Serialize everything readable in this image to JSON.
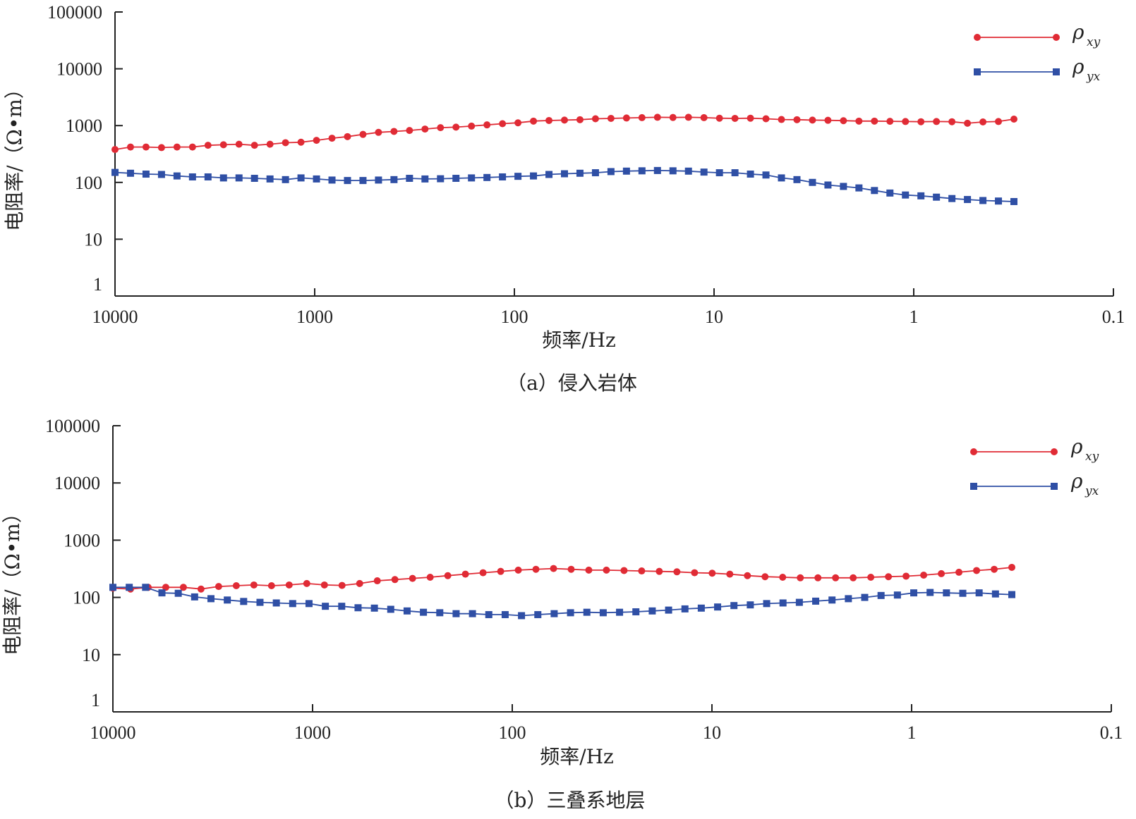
{
  "chart_data": [
    {
      "type": "line",
      "caption": "（a）侵入岩体",
      "xlabel": "频率/Hz",
      "ylabel": "电阻率/（Ω•m）",
      "xscale": "log",
      "yscale": "log",
      "xlim": [
        10000,
        0.1
      ],
      "ylim": [
        1,
        100000
      ],
      "xticks": [
        "10000",
        "1000",
        "100",
        "10",
        "1",
        "0.1"
      ],
      "yticks": [
        "1",
        "10",
        "100",
        "1000",
        "10000",
        "100000"
      ],
      "legend": {
        "placement": "top-right"
      },
      "series": [
        {
          "name": "ρ",
          "name_sub": "xy",
          "color": "#e02b35",
          "marker": "circle",
          "values": [
            380,
            420,
            420,
            410,
            420,
            420,
            450,
            460,
            470,
            450,
            470,
            500,
            510,
            550,
            600,
            640,
            700,
            760,
            790,
            820,
            870,
            920,
            940,
            980,
            1030,
            1080,
            1120,
            1200,
            1230,
            1250,
            1270,
            1320,
            1340,
            1360,
            1380,
            1400,
            1390,
            1400,
            1380,
            1350,
            1340,
            1350,
            1320,
            1280,
            1270,
            1250,
            1240,
            1220,
            1200,
            1200,
            1190,
            1180,
            1170,
            1180,
            1170,
            1100,
            1160,
            1180,
            1300
          ]
        },
        {
          "name": "ρ",
          "name_sub": "yx",
          "color": "#2f4fa5",
          "marker": "square",
          "values": [
            150,
            145,
            140,
            138,
            130,
            125,
            125,
            120,
            120,
            118,
            115,
            112,
            120,
            115,
            110,
            108,
            108,
            110,
            112,
            118,
            115,
            116,
            118,
            120,
            122,
            125,
            128,
            130,
            138,
            142,
            145,
            148,
            155,
            158,
            160,
            162,
            160,
            158,
            152,
            148,
            148,
            140,
            135,
            120,
            112,
            100,
            90,
            85,
            80,
            72,
            65,
            60,
            58,
            55,
            52,
            50,
            48,
            47,
            46
          ]
        }
      ]
    },
    {
      "type": "line",
      "caption": "（b）三叠系地层",
      "xlabel": "频率/Hz",
      "ylabel": "电阻率/（Ω•m）",
      "xscale": "log",
      "yscale": "log",
      "xlim": [
        10000,
        0.1
      ],
      "ylim": [
        1,
        100000
      ],
      "xticks": [
        "10000",
        "1000",
        "100",
        "10",
        "1",
        "0.1"
      ],
      "yticks": [
        "1",
        "10",
        "100",
        "1000",
        "10000",
        "100000"
      ],
      "legend": {
        "placement": "top-right"
      },
      "series": [
        {
          "name": "ρ",
          "name_sub": "xy",
          "color": "#e02b35",
          "marker": "circle",
          "values": [
            145,
            140,
            150,
            150,
            150,
            140,
            155,
            160,
            165,
            160,
            165,
            175,
            165,
            162,
            175,
            195,
            205,
            215,
            225,
            240,
            255,
            270,
            285,
            300,
            310,
            320,
            310,
            300,
            300,
            295,
            290,
            285,
            280,
            270,
            265,
            255,
            240,
            230,
            225,
            220,
            220,
            220,
            220,
            225,
            230,
            235,
            245,
            260,
            275,
            295,
            310,
            335
          ]
        },
        {
          "name": "ρ",
          "name_sub": "yx",
          "color": "#2f4fa5",
          "marker": "square",
          "values": [
            150,
            150,
            150,
            120,
            118,
            102,
            95,
            90,
            85,
            82,
            80,
            78,
            78,
            70,
            70,
            66,
            65,
            62,
            58,
            55,
            54,
            52,
            52,
            50,
            50,
            48,
            50,
            52,
            54,
            55,
            54,
            55,
            56,
            58,
            60,
            63,
            65,
            68,
            72,
            74,
            78,
            80,
            82,
            86,
            90,
            95,
            100,
            108,
            110,
            120,
            122,
            120,
            118,
            120,
            115,
            112
          ]
        }
      ]
    }
  ]
}
